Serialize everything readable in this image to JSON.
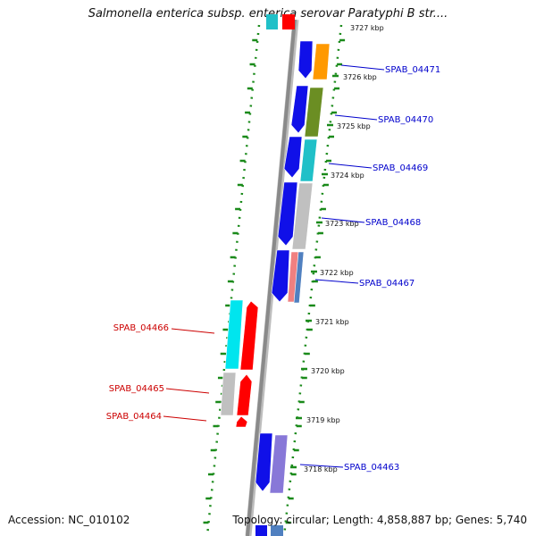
{
  "title": "Salmonella enterica subsp. enterica serovar Paratyphi B str....",
  "footer": {
    "accession": "Accession: NC_010102",
    "summary": "Topology: circular; Length: 4,858,887 bp; Genes: 5,740"
  },
  "colors": {
    "backbone": "#8a8a8a",
    "dots": "#1a8a1a",
    "label_forward": "#0000cc",
    "label_reverse": "#cc0000",
    "blue": "#1010e8",
    "orange": "#ff9900",
    "olive": "#6b8e23",
    "teal": "#20c0c8",
    "gray": "#c0c0c0",
    "salmon": "#f08080",
    "steel": "#5080c0",
    "cyan": "#00e5ee",
    "red": "#ff0000",
    "lavender": "#8878d8"
  },
  "scale_ticks": [
    "3727 kbp",
    "3726 kbp",
    "3725 kbp",
    "3724 kbp",
    "3723 kbp",
    "3722 kbp",
    "3721 kbp",
    "3720 kbp",
    "3719 kbp",
    "3718 kbp"
  ],
  "gene_labels": [
    {
      "text": "SPAB_04471",
      "strand": "forward"
    },
    {
      "text": "SPAB_04470",
      "strand": "forward"
    },
    {
      "text": "SPAB_04469",
      "strand": "forward"
    },
    {
      "text": "SPAB_04468",
      "strand": "forward"
    },
    {
      "text": "SPAB_04467",
      "strand": "forward"
    },
    {
      "text": "SPAB_04466",
      "strand": "reverse"
    },
    {
      "text": "SPAB_04465",
      "strand": "reverse"
    },
    {
      "text": "SPAB_04464",
      "strand": "reverse"
    },
    {
      "text": "SPAB_04463",
      "strand": "forward"
    }
  ]
}
